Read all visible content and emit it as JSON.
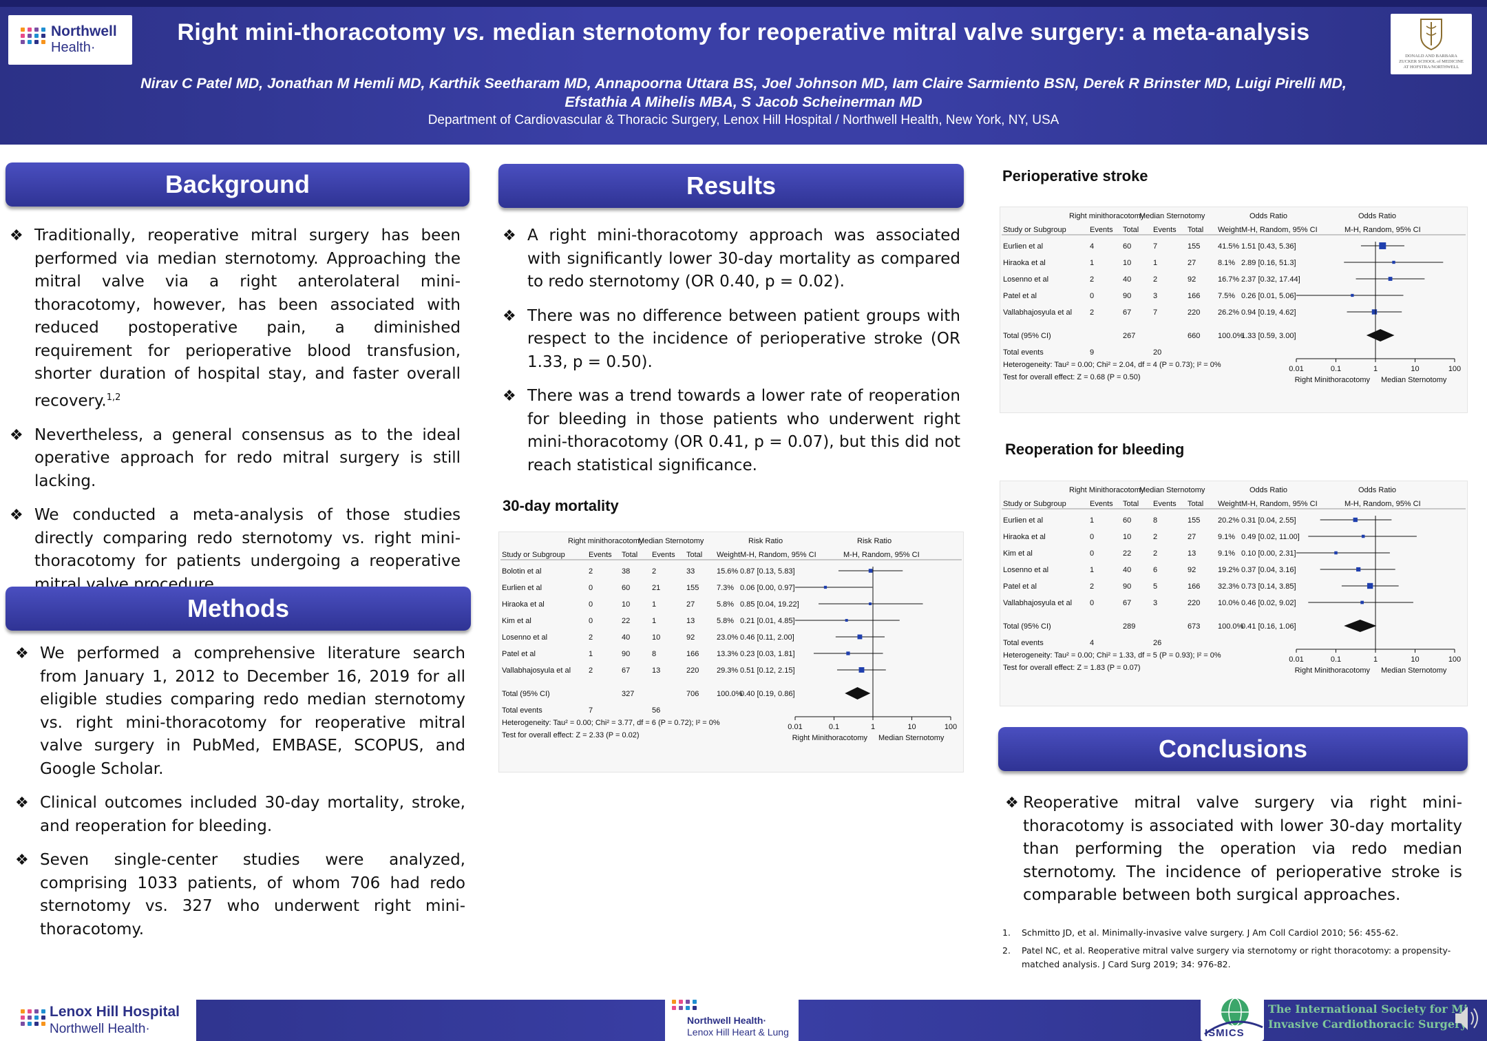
{
  "header": {
    "title": "Right mini-thoracotomy vs. median sternotomy for reoperative mitral valve surgery: a meta-analysis",
    "title_parts": [
      "Right mini-thoracotomy ",
      "vs.",
      " median sternotomy for reoperative mitral valve surgery: a meta-analysis"
    ],
    "authors_line1": "Nirav C Patel MD, Jonathan M Hemli MD, Karthik Seetharam MD, Annapoorna Uttara BS, Joel Johnson MD, Iam Claire Sarmiento BSN, Derek R Brinster MD, Luigi Pirelli MD,",
    "authors_line2": "Efstathia A Mihelis MBA, S Jacob Scheinerman MD",
    "department": "Department of Cardiovascular & Thoracic Surgery, Lenox Hill Hospital / Northwell Health, New York, NY, USA",
    "logo_left_line1": "Northwell",
    "logo_left_line2": "Health·",
    "logo_right_line1": "DONALD AND BARBARA",
    "logo_right_line2": "ZUCKER SCHOOL of MEDICINE",
    "logo_right_line3": "AT HOFSTRA/NORTHWELL"
  },
  "background": {
    "heading": "Background",
    "bullets": [
      "Traditionally, reoperative mitral surgery has been performed via median sternotomy. Approaching the mitral valve via a right anterolateral mini-thoracotomy, however, has been associated with reduced postoperative pain, a diminished requirement for perioperative blood transfusion, shorter duration of hospital stay, and faster overall recovery.",
      "Nevertheless, a general consensus as to the ideal operative approach for redo mitral surgery is still lacking.",
      "We conducted a meta-analysis of those studies directly comparing redo sternotomy vs. right mini-thoracotomy for patients undergoing a reoperative mitral valve procedure."
    ],
    "superscript": "1,2"
  },
  "methods": {
    "heading": "Methods",
    "bullets": [
      "We performed a comprehensive literature search from January 1, 2012 to December 16, 2019 for all eligible studies comparing redo median sternotomy vs. right mini-thoracotomy for reoperative mitral valve surgery in PubMed, EMBASE, SCOPUS, and Google Scholar.",
      "Clinical outcomes included 30-day mortality, stroke, and reoperation for bleeding.",
      "Seven single-center studies were analyzed, comprising 1033 patients, of whom 706 had redo sternotomy vs. 327 who underwent right mini-thoracotomy."
    ]
  },
  "results": {
    "heading": "Results",
    "bullets": [
      "A right mini-thoracotomy approach was associated with significantly lower 30-day mortality as compared to redo sternotomy (OR 0.40, p = 0.02).",
      "There was no difference between patient groups with respect to the incidence of perioperative stroke (OR 1.33, p = 0.50).",
      "There was a trend towards a lower rate of reoperation for bleeding in those patients who underwent right mini-thoracotomy (OR 0.41, p = 0.07), but this did not reach statistical significance."
    ]
  },
  "conclusions": {
    "heading": "Conclusions",
    "bullets": [
      "Reoperative mitral valve surgery via right mini-thoracotomy is associated with lower 30-day mortality than performing the operation via redo median sternotomy. The incidence of perioperative stroke is comparable between both surgical approaches."
    ]
  },
  "references": [
    {
      "num": "1.",
      "text": "Schmitto JD, et al. Minimally-invasive valve surgery. J Am Coll Cardiol 2010; 56: 455-62."
    },
    {
      "num": "2.",
      "text": "Patel NC, et al. Reoperative mitral valve surgery via sternotomy or right thoracotomy: a propensity-matched analysis. J Card Surg 2019; 34: 976-82."
    }
  ],
  "footer": {
    "lenox_line1": "Lenox Hill Hospital",
    "lenox_line2": "Northwell Health·",
    "center_line1": "Northwell Health·",
    "center_line2": "Lenox Hill Heart & Lung",
    "ismics_badge": "ISMICS",
    "ismics_line1": "The International Society for Minimally",
    "ismics_line2": "Invasive Cardiothoracic Surgery"
  },
  "colors": {
    "navy": "#2c3187",
    "blue": "#3a3fa6",
    "diamond": "#111111",
    "ci_point": "#1f3fae"
  },
  "chart_data": [
    {
      "type": "forest",
      "title": "30-day mortality",
      "group1": "Right minithoracotomy",
      "group2": "Median Sternotomy",
      "measure": "Risk Ratio",
      "method": "M-H, Random, 95% CI",
      "columns": [
        "Study or Subgroup",
        "Events",
        "Total",
        "Events",
        "Total",
        "Weight",
        "M-H, Random, 95% CI"
      ],
      "studies": [
        {
          "name": "Bolotin et al",
          "e1": "2",
          "n1": "38",
          "e2": "2",
          "n2": "33",
          "w": "15.6%",
          "ci_text": "0.87 [0.13, 5.83]",
          "est": 0.87,
          "lo": 0.13,
          "hi": 5.83
        },
        {
          "name": "Eurlien et al",
          "e1": "0",
          "n1": "60",
          "e2": "21",
          "n2": "155",
          "w": "7.3%",
          "ci_text": "0.06 [0.00, 0.97]",
          "est": 0.06,
          "lo": 0.004,
          "hi": 0.97
        },
        {
          "name": "Hiraoka et al",
          "e1": "0",
          "n1": "10",
          "e2": "1",
          "n2": "27",
          "w": "5.8%",
          "ci_text": "0.85 [0.04, 19.22]",
          "est": 0.85,
          "lo": 0.04,
          "hi": 19.22
        },
        {
          "name": "Kim et al",
          "e1": "0",
          "n1": "22",
          "e2": "1",
          "n2": "13",
          "w": "5.8%",
          "ci_text": "0.21 [0.01, 4.85]",
          "est": 0.21,
          "lo": 0.01,
          "hi": 4.85
        },
        {
          "name": "Losenno et al",
          "e1": "2",
          "n1": "40",
          "e2": "10",
          "n2": "92",
          "w": "23.0%",
          "ci_text": "0.46 [0.11, 2.00]",
          "est": 0.46,
          "lo": 0.11,
          "hi": 2.0
        },
        {
          "name": "Patel et al",
          "e1": "1",
          "n1": "90",
          "e2": "8",
          "n2": "166",
          "w": "13.3%",
          "ci_text": "0.23 [0.03, 1.81]",
          "est": 0.23,
          "lo": 0.03,
          "hi": 1.81
        },
        {
          "name": "Vallabhajosyula et al",
          "e1": "2",
          "n1": "67",
          "e2": "13",
          "n2": "220",
          "w": "29.3%",
          "ci_text": "0.51 [0.12, 2.15]",
          "est": 0.51,
          "lo": 0.12,
          "hi": 2.15
        }
      ],
      "total": {
        "label": "Total (95% CI)",
        "n1": "327",
        "n2": "706",
        "w": "100.0%",
        "ci_text": "0.40 [0.19, 0.86]",
        "est": 0.4,
        "lo": 0.19,
        "hi": 0.86
      },
      "total_events": {
        "label": "Total events",
        "e1": "7",
        "e2": "56"
      },
      "heterogeneity": "Heterogeneity: Tau² = 0.00; Chi² = 3.77, df = 6 (P = 0.72); I² = 0%",
      "overall_effect": "Test for overall effect: Z = 2.33 (P = 0.02)",
      "x_ticks": [
        0.01,
        0.1,
        1,
        10,
        100
      ],
      "x_tick_labels": [
        "0.01",
        "0.1",
        "1",
        "10",
        "100"
      ],
      "x_left_label": "Right Minithoracotomy",
      "x_right_label": "Median Sternotomy",
      "x_scale": "log"
    },
    {
      "type": "forest",
      "title": "Perioperative stroke",
      "group1": "Right minithoracotomy",
      "group2": "Median Sternotomy",
      "measure": "Odds Ratio",
      "method": "M-H, Random, 95% CI",
      "columns": [
        "Study or Subgroup",
        "Events",
        "Total",
        "Events",
        "Total",
        "Weight",
        "M-H, Random, 95% CI"
      ],
      "studies": [
        {
          "name": "Eurlien et al",
          "e1": "4",
          "n1": "60",
          "e2": "7",
          "n2": "155",
          "w": "41.5%",
          "ci_text": "1.51 [0.43, 5.36]",
          "est": 1.51,
          "lo": 0.43,
          "hi": 5.36
        },
        {
          "name": "Hiraoka et al",
          "e1": "1",
          "n1": "10",
          "e2": "1",
          "n2": "27",
          "w": "8.1%",
          "ci_text": "2.89 [0.16, 51.3]",
          "est": 2.89,
          "lo": 0.16,
          "hi": 51.3
        },
        {
          "name": "Losenno et al",
          "e1": "2",
          "n1": "40",
          "e2": "2",
          "n2": "92",
          "w": "16.7%",
          "ci_text": "2.37 [0.32, 17.44]",
          "est": 2.37,
          "lo": 0.32,
          "hi": 17.44
        },
        {
          "name": "Patel et al",
          "e1": "0",
          "n1": "90",
          "e2": "3",
          "n2": "166",
          "w": "7.5%",
          "ci_text": "0.26 [0.01, 5.06]",
          "est": 0.26,
          "lo": 0.01,
          "hi": 5.06
        },
        {
          "name": "Vallabhajosyula et al",
          "e1": "2",
          "n1": "67",
          "e2": "7",
          "n2": "220",
          "w": "26.2%",
          "ci_text": "0.94 [0.19, 4.62]",
          "est": 0.94,
          "lo": 0.19,
          "hi": 4.62
        }
      ],
      "total": {
        "label": "Total (95% CI)",
        "n1": "267",
        "n2": "660",
        "w": "100.0%",
        "ci_text": "1.33 [0.59, 3.00]",
        "est": 1.33,
        "lo": 0.59,
        "hi": 3.0
      },
      "total_events": {
        "label": "Total events",
        "e1": "9",
        "e2": "20"
      },
      "heterogeneity": "Heterogeneity: Tau² = 0.00; Chi² = 2.04, df = 4 (P = 0.73); I² = 0%",
      "overall_effect": "Test for overall effect: Z = 0.68 (P = 0.50)",
      "x_ticks": [
        0.01,
        0.1,
        1,
        10,
        100
      ],
      "x_tick_labels": [
        "0.01",
        "0.1",
        "1",
        "10",
        "100"
      ],
      "x_left_label": "Right Minithoracotomy",
      "x_right_label": "Median Sternotomy",
      "x_scale": "log"
    },
    {
      "type": "forest",
      "title": "Reoperation for bleeding",
      "group1": "Right Minithoracotomy",
      "group2": "Median Sternotomy",
      "measure": "Odds Ratio",
      "method": "M-H, Random, 95% CI",
      "columns": [
        "Study or Subgroup",
        "Events",
        "Total",
        "Events",
        "Total",
        "Weight",
        "M-H, Random, 95% CI"
      ],
      "studies": [
        {
          "name": "Eurlien et al",
          "e1": "1",
          "n1": "60",
          "e2": "8",
          "n2": "155",
          "w": "20.2%",
          "ci_text": "0.31 [0.04, 2.55]",
          "est": 0.31,
          "lo": 0.04,
          "hi": 2.55
        },
        {
          "name": "Hiraoka et al",
          "e1": "0",
          "n1": "10",
          "e2": "2",
          "n2": "27",
          "w": "9.1%",
          "ci_text": "0.49 [0.02, 11.00]",
          "est": 0.49,
          "lo": 0.02,
          "hi": 11.0
        },
        {
          "name": "Kim et al",
          "e1": "0",
          "n1": "22",
          "e2": "2",
          "n2": "13",
          "w": "9.1%",
          "ci_text": "0.10 [0.00, 2.31]",
          "est": 0.1,
          "lo": 0.004,
          "hi": 2.31
        },
        {
          "name": "Losenno et al",
          "e1": "1",
          "n1": "40",
          "e2": "6",
          "n2": "92",
          "w": "19.2%",
          "ci_text": "0.37 [0.04, 3.16]",
          "est": 0.37,
          "lo": 0.04,
          "hi": 3.16
        },
        {
          "name": "Patel et al",
          "e1": "2",
          "n1": "90",
          "e2": "5",
          "n2": "166",
          "w": "32.3%",
          "ci_text": "0.73 [0.14, 3.85]",
          "est": 0.73,
          "lo": 0.14,
          "hi": 3.85
        },
        {
          "name": "Vallabhajosyula et al",
          "e1": "0",
          "n1": "67",
          "e2": "3",
          "n2": "220",
          "w": "10.0%",
          "ci_text": "0.46 [0.02, 9.02]",
          "est": 0.46,
          "lo": 0.02,
          "hi": 9.02
        }
      ],
      "total": {
        "label": "Total (95% CI)",
        "n1": "289",
        "n2": "673",
        "w": "100.0%",
        "ci_text": "0.41 [0.16, 1.06]",
        "est": 0.41,
        "lo": 0.16,
        "hi": 1.06
      },
      "total_events": {
        "label": "Total events",
        "e1": "4",
        "e2": "26"
      },
      "heterogeneity": "Heterogeneity: Tau² = 0.00; Chi² = 1.33, df = 5 (P = 0.93); I² = 0%",
      "overall_effect": "Test for overall effect: Z = 1.83 (P = 0.07)",
      "x_ticks": [
        0.01,
        0.1,
        1,
        10,
        100
      ],
      "x_tick_labels": [
        "0.01",
        "0.1",
        "1",
        "10",
        "100"
      ],
      "x_left_label": "Right Minithoracotomy",
      "x_right_label": "Median Sternotomy",
      "x_scale": "log"
    }
  ]
}
